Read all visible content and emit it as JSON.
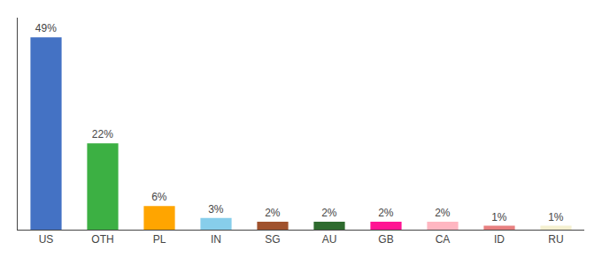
{
  "chart_data": {
    "type": "bar",
    "categories": [
      "US",
      "OTH",
      "PL",
      "IN",
      "SG",
      "AU",
      "GB",
      "CA",
      "ID",
      "RU"
    ],
    "values": [
      49,
      22,
      6,
      3,
      2,
      2,
      2,
      2,
      1,
      1
    ],
    "value_labels": [
      "49%",
      "22%",
      "6%",
      "3%",
      "2%",
      "2%",
      "2%",
      "2%",
      "1%",
      "1%"
    ],
    "colors": [
      "#4472C4",
      "#3CB043",
      "#FFA500",
      "#87CEEB",
      "#A0522D",
      "#2E6B2E",
      "#FF1493",
      "#FFB6C1",
      "#E88080",
      "#F5F0D0"
    ],
    "ylim": [
      0,
      54
    ],
    "data_labels": true,
    "tick_labels": "x",
    "grid": false
  }
}
